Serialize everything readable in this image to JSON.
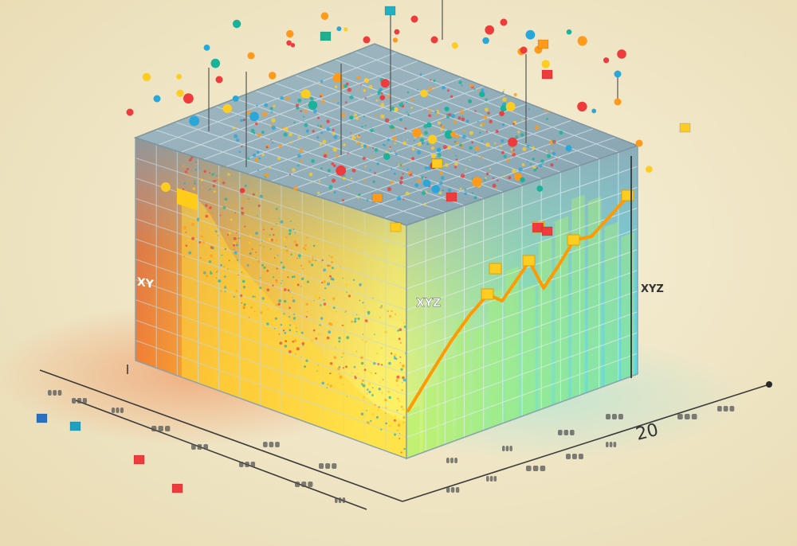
{
  "labels": {
    "left_face": "XY",
    "front_face": "XYZ",
    "right_face": "XYZ",
    "axis_number": "20"
  },
  "colors": {
    "background": "#efe6c9",
    "grid_top": "#8fb0bc",
    "grid_line": "#dfe9ee",
    "warm_a": "#f05a1e",
    "warm_b": "#ffd23a",
    "cool_a": "#c9f06a",
    "cool_b": "#40d0e0",
    "line": "#ffb000",
    "dot_red": "#ee3b3b",
    "dot_orange": "#ff9a1a",
    "dot_blue": "#2aa7d9",
    "dot_yellow": "#ffcc22",
    "dot_teal": "#19b39b"
  }
}
